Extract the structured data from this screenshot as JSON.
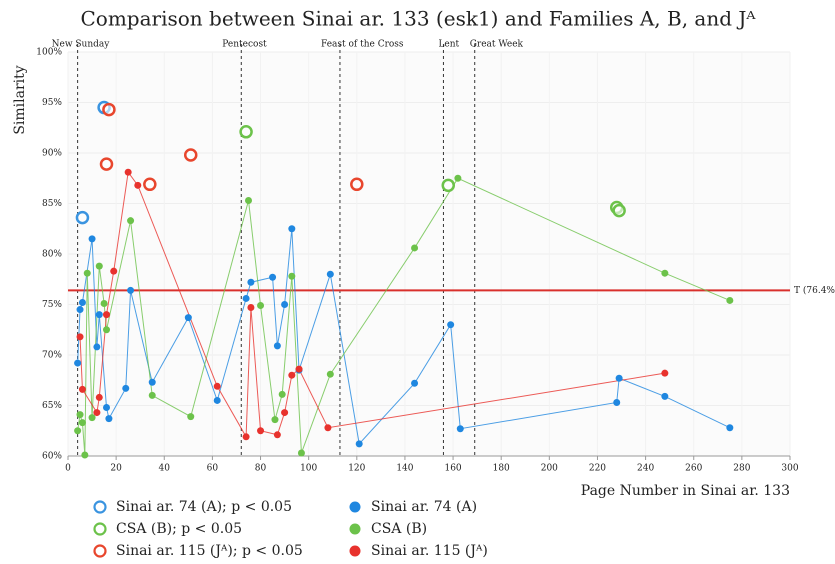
{
  "chart_data": {
    "type": "scatter",
    "title": "Comparison between Sinai ar. 133 (esk1) and Families A, B, and Jᴬ",
    "x_label": "Page Number in Sinai ar. 133",
    "y_label": "Similarity",
    "xlim": [
      0,
      300
    ],
    "ylim": [
      60,
      100
    ],
    "xticks": [
      0,
      20,
      40,
      60,
      80,
      100,
      120,
      140,
      160,
      180,
      200,
      220,
      240,
      260,
      280,
      300
    ],
    "yticks": [
      {
        "value": 60,
        "label": "60%"
      },
      {
        "value": 65,
        "label": "65%"
      },
      {
        "value": 70,
        "label": "70%"
      },
      {
        "value": 75,
        "label": "75%"
      },
      {
        "value": 80,
        "label": "80%"
      },
      {
        "value": 85,
        "label": "85%"
      },
      {
        "value": 90,
        "label": "90%"
      },
      {
        "value": 95,
        "label": "95%"
      },
      {
        "value": 100,
        "label": "100%"
      }
    ],
    "grid": true,
    "threshold": {
      "value": 76.4,
      "label": "T (76.4%)",
      "color": "#d9302c"
    },
    "vlines": [
      {
        "x": 4,
        "label": "New Sunday"
      },
      {
        "x": 72,
        "label": "Pentecost"
      },
      {
        "x": 113,
        "label": "Feast of the Cross"
      },
      {
        "x": 156,
        "label": "Lent"
      },
      {
        "x": 169,
        "label": "Great Week"
      }
    ],
    "series": [
      {
        "name": "Sinai ar. 74 (A); p < 0.05",
        "color": "#3a94e0",
        "marker": "open",
        "line": false,
        "x": [
          6,
          15
        ],
        "values": [
          83.6,
          94.5
        ]
      },
      {
        "name": "CSA (B); p < 0.05",
        "color": "#6cc24a",
        "marker": "open",
        "line": false,
        "x": [
          74,
          158,
          228,
          229
        ],
        "values": [
          92.1,
          86.8,
          84.6,
          84.3
        ]
      },
      {
        "name": "Sinai ar. 115 (Jᴬ); p < 0.05",
        "color": "#e8462d",
        "marker": "open",
        "line": false,
        "x": [
          16,
          17,
          34,
          51,
          120
        ],
        "values": [
          88.9,
          94.3,
          86.9,
          89.8,
          86.9
        ]
      },
      {
        "name": "Sinai ar. 74 (A)",
        "color": "#1f87e0",
        "marker": "filled",
        "line": true,
        "x": [
          4,
          5,
          6,
          10,
          12,
          13,
          16,
          17,
          24,
          26,
          35,
          50,
          62,
          74,
          76,
          85,
          87,
          90,
          93,
          96,
          109,
          121,
          144,
          159,
          163,
          228,
          229,
          248,
          275
        ],
        "values": [
          69.2,
          74.5,
          75.2,
          81.5,
          70.8,
          74,
          64.8,
          63.7,
          66.7,
          76.4,
          67.3,
          73.7,
          65.5,
          75.6,
          77.2,
          77.7,
          70.9,
          75,
          82.5,
          68.5,
          78,
          61.2,
          67.2,
          73,
          62.7,
          65.3,
          67.7,
          65.9,
          62.8
        ]
      },
      {
        "name": "CSA (B)",
        "color": "#6cc24a",
        "marker": "filled",
        "line": true,
        "x": [
          4,
          5,
          6,
          7,
          8,
          10,
          13,
          15,
          16,
          26,
          35,
          51,
          75,
          80,
          86,
          89,
          93,
          97,
          109,
          144,
          162,
          248,
          275
        ],
        "values": [
          62.5,
          64.1,
          63.3,
          60.1,
          78.1,
          63.8,
          78.8,
          75.1,
          72.5,
          83.3,
          66,
          63.9,
          85.3,
          74.9,
          63.6,
          66.1,
          77.8,
          60.3,
          68.1,
          80.6,
          87.5,
          78.1,
          75.4
        ]
      },
      {
        "name": "Sinai ar. 115 (Jᴬ)",
        "color": "#e8322d",
        "marker": "filled",
        "line": true,
        "x": [
          5,
          6,
          12,
          13,
          16,
          19,
          25,
          29,
          62,
          74,
          76,
          80,
          87,
          90,
          93,
          96,
          108,
          248
        ],
        "values": [
          71.8,
          66.6,
          64.3,
          65.8,
          74,
          78.3,
          88.1,
          86.8,
          66.9,
          61.9,
          74.7,
          62.5,
          62.1,
          64.3,
          68,
          68.6,
          62.8,
          68.2
        ]
      }
    ]
  }
}
